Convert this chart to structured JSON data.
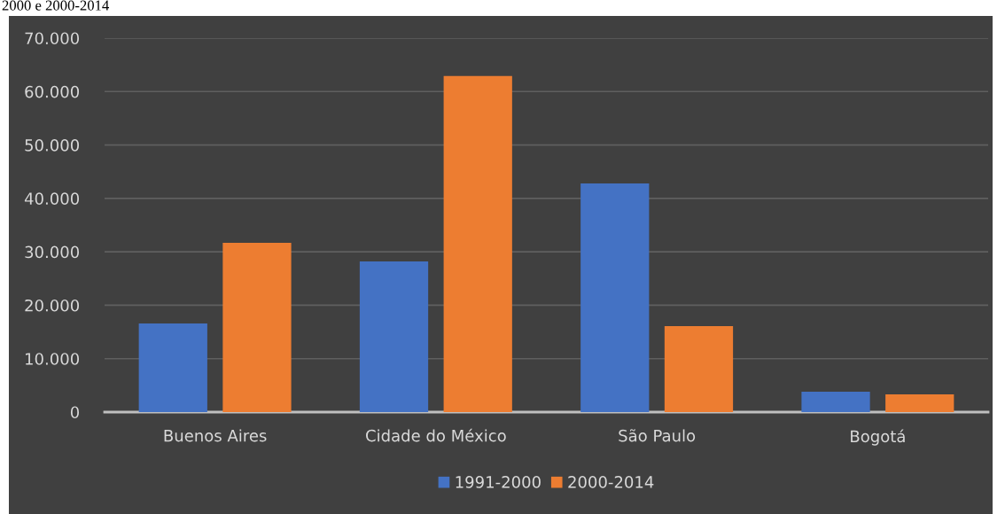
{
  "chart_data": {
    "type": "bar",
    "title": "2000 e 2000-2014",
    "categories": [
      "Buenos Aires",
      "Cidade do México",
      "São Paulo",
      "Bogotá"
    ],
    "series": [
      {
        "name": "1991-2000",
        "color": "#4472c4",
        "values": [
          16600,
          28200,
          42800,
          3800
        ]
      },
      {
        "name": "2000-2014",
        "color": "#ed7d31",
        "values": [
          31700,
          62900,
          16100,
          3300
        ]
      }
    ],
    "ylim": [
      0,
      70000
    ],
    "yticks": [
      0,
      {
        "value": 10000,
        "label": "10.000"
      },
      {
        "value": 20000,
        "label": "20.000"
      },
      {
        "value": 30000,
        "label": "30.000"
      },
      {
        "value": 40000,
        "label": "40.000"
      },
      {
        "value": 50000,
        "label": "50.000"
      },
      {
        "value": 60000,
        "label": "60.000"
      },
      {
        "value": 70000,
        "label": "70.000"
      }
    ],
    "grid": "y",
    "legend": "bottom"
  }
}
